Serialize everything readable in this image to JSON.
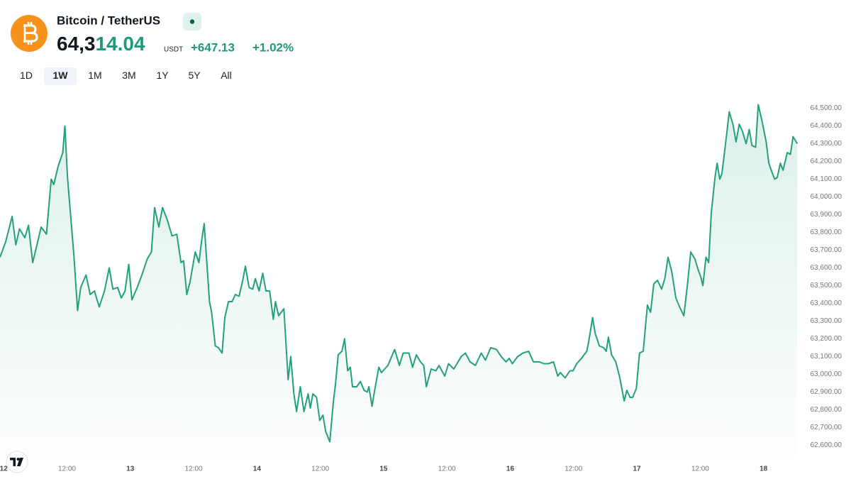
{
  "header": {
    "title": "Bitcoin / TetherUS",
    "price": "64,314.04",
    "currency": "USDT",
    "change": "+647.13",
    "change_pct": "+1.02%"
  },
  "timeframes": {
    "options": [
      "1D",
      "1W",
      "1M",
      "3M",
      "1Y",
      "5Y",
      "All"
    ],
    "active": "1W"
  },
  "chart_data": {
    "type": "line",
    "color": "#23a07c",
    "x": [
      -0.7,
      0.4,
      1.6,
      2.3,
      3.0,
      4.0,
      4.7,
      5.5,
      6.3,
      7.1,
      8.1,
      9.0,
      9.5,
      10.3,
      11.2,
      11.6,
      12.1,
      13.3,
      14.0,
      14.6,
      15.6,
      16.4,
      17.2,
      18.1,
      19.1,
      20.0,
      20.7,
      21.6,
      22.3,
      23.0,
      23.7,
      24.3,
      25.3,
      26.2,
      27.2,
      28.0,
      28.6,
      29.4,
      30.1,
      31.0,
      31.9,
      32.8,
      33.6,
      34.1,
      34.7,
      35.3,
      36.3,
      37.0,
      37.5,
      38.0,
      39.0,
      39.4,
      40.1,
      40.7,
      41.4,
      41.9,
      42.6,
      43.3,
      43.9,
      44.6,
      45.3,
      45.8,
      46.5,
      47.2,
      47.7,
      48.4,
      49.1,
      49.7,
      50.4,
      51.1,
      51.5,
      52.1,
      53.1,
      53.9,
      54.4,
      55.0,
      55.5,
      56.2,
      56.9,
      57.7,
      58.1,
      58.6,
      59.3,
      59.9,
      60.5,
      61.0,
      61.8,
      62.5,
      62.9,
      63.4,
      64.1,
      64.6,
      65.2,
      65.7,
      66.1,
      66.9,
      67.6,
      68.3,
      68.9,
      69.2,
      69.8,
      70.3,
      71.1,
      71.6,
      72.8,
      74.1,
      75.0,
      75.7,
      76.8,
      77.5,
      78.2,
      79.0,
      79.6,
      80.1,
      81.0,
      81.9,
      82.5,
      83.6,
      84.3,
      85.3,
      86.7,
      87.5,
      88.4,
      89.4,
      90.5,
      91.3,
      92.3,
      93.4,
      94.3,
      95.2,
      95.8,
      96.4,
      97.4,
      98.4,
      99.5,
      100.4,
      101.5,
      102.4,
      103.2,
      104.2,
      105.0,
      105.5,
      106.4,
      107.3,
      107.9,
      108.6,
      109.5,
      110.5,
      110.9,
      111.6,
      112.1,
      112.9,
      113.7,
      114.2,
      114.6,
      115.2,
      116.0,
      116.7,
      117.6,
      118.1,
      118.7,
      119.2,
      119.9,
      120.5,
      121.2,
      122.0,
      122.6,
      123.2,
      123.9,
      124.7,
      125.3,
      125.9,
      126.6,
      127.4,
      128.1,
      128.9,
      129.6,
      130.2,
      131.0,
      131.6,
      132.1,
      132.5,
      133.1,
      133.6,
      134.1,
      134.8,
      135.2,
      135.7,
      136.1,
      136.8,
      137.5,
      138.2,
      138.8,
      139.4,
      140.0,
      140.7,
      141.3,
      141.8,
      142.5,
      143.0,
      143.7,
      144.5,
      145.0,
      145.6,
      146.1,
      146.6,
      147.2,
      147.7,
      148.5,
      149.1,
      149.6,
      150.4
    ],
    "values": [
      63660,
      63750,
      63890,
      63730,
      63820,
      63770,
      63840,
      63630,
      63730,
      63830,
      63790,
      64100,
      64070,
      64170,
      64250,
      64400,
      64110,
      63670,
      63360,
      63490,
      63560,
      63450,
      63470,
      63380,
      63470,
      63600,
      63480,
      63490,
      63430,
      63470,
      63620,
      63420,
      63490,
      63560,
      63650,
      63690,
      63940,
      63830,
      63940,
      63870,
      63780,
      63790,
      63630,
      63640,
      63450,
      63520,
      63690,
      63630,
      63750,
      63850,
      63410,
      63350,
      63160,
      63150,
      63120,
      63320,
      63410,
      63410,
      63450,
      63440,
      63530,
      63610,
      63490,
      63480,
      63540,
      63470,
      63570,
      63470,
      63470,
      63310,
      63410,
      63330,
      63370,
      62970,
      63100,
      62890,
      62790,
      62930,
      62790,
      62890,
      62810,
      62890,
      62870,
      62740,
      62770,
      62680,
      62620,
      62850,
      62950,
      63110,
      63130,
      63200,
      63020,
      63040,
      62930,
      62930,
      62960,
      62910,
      62900,
      62930,
      62820,
      62910,
      63040,
      63010,
      63050,
      63140,
      63050,
      63120,
      63120,
      63040,
      63110,
      63070,
      63050,
      62930,
      63030,
      63020,
      63050,
      62990,
      63060,
      63030,
      63100,
      63120,
      63070,
      63050,
      63120,
      63080,
      63150,
      63140,
      63100,
      63070,
      63090,
      63060,
      63100,
      63120,
      63130,
      63070,
      63070,
      63060,
      63060,
      63070,
      62990,
      63010,
      62980,
      63020,
      63020,
      63060,
      63090,
      63130,
      63190,
      63320,
      63230,
      63160,
      63150,
      63130,
      63210,
      63110,
      63070,
      62990,
      62850,
      62910,
      62870,
      62870,
      62920,
      63120,
      63130,
      63390,
      63350,
      63510,
      63530,
      63480,
      63540,
      63660,
      63580,
      63430,
      63380,
      63330,
      63510,
      63690,
      63650,
      63590,
      63550,
      63500,
      63660,
      63630,
      63910,
      64110,
      64190,
      64100,
      64130,
      64300,
      64480,
      64410,
      64310,
      64410,
      64370,
      64300,
      64380,
      64290,
      64280,
      64520,
      64430,
      64310,
      64190,
      64140,
      64100,
      64110,
      64190,
      64150,
      64250,
      64240,
      64340,
      64300
    ],
    "xlim": [
      -0.7,
      150.5
    ],
    "xticks": [
      {
        "value": 0,
        "label": "12"
      },
      {
        "value": 12,
        "label": "12:00"
      },
      {
        "value": 24,
        "label": "13"
      },
      {
        "value": 36,
        "label": "12:00"
      },
      {
        "value": 48,
        "label": "14"
      },
      {
        "value": 60,
        "label": "12:00"
      },
      {
        "value": 72,
        "label": "15"
      },
      {
        "value": 84,
        "label": "12:00"
      },
      {
        "value": 96,
        "label": "16"
      },
      {
        "value": 108,
        "label": "12:00"
      },
      {
        "value": 120,
        "label": "17"
      },
      {
        "value": 132,
        "label": "12:00"
      },
      {
        "value": 144,
        "label": "18"
      }
    ],
    "ylim": [
      62530,
      64590
    ],
    "yticks": [
      {
        "value": 62600,
        "label": "62,600.00"
      },
      {
        "value": 62700,
        "label": "62,700.00"
      },
      {
        "value": 62800,
        "label": "62,800.00"
      },
      {
        "value": 62900,
        "label": "62,900.00"
      },
      {
        "value": 63000,
        "label": "63,000.00"
      },
      {
        "value": 63100,
        "label": "63,100.00"
      },
      {
        "value": 63200,
        "label": "63,200.00"
      },
      {
        "value": 63300,
        "label": "63,300.00"
      },
      {
        "value": 63400,
        "label": "63,400.00"
      },
      {
        "value": 63500,
        "label": "63,500.00"
      },
      {
        "value": 63600,
        "label": "63,600.00"
      },
      {
        "value": 63700,
        "label": "63,700.00"
      },
      {
        "value": 63800,
        "label": "63,800.00"
      },
      {
        "value": 63900,
        "label": "63,900.00"
      },
      {
        "value": 64000,
        "label": "64,000.00"
      },
      {
        "value": 64100,
        "label": "64,100.00"
      },
      {
        "value": 64200,
        "label": "64,200.00"
      },
      {
        "value": 64300,
        "label": "64,300.00"
      },
      {
        "value": 64400,
        "label": "64,400.00"
      },
      {
        "value": 64500,
        "label": "64,500.00"
      }
    ],
    "grid": false
  }
}
